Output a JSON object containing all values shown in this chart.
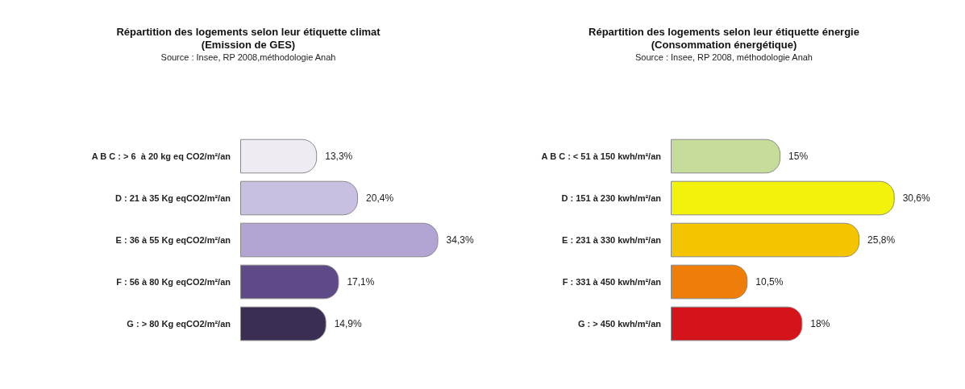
{
  "chart_data": [
    {
      "type": "bar",
      "orientation": "horizontal",
      "title": "Répartition des logements selon leur étiquette climat",
      "subtitle": "(Emission de GES)",
      "annotations": [
        "Source : Insee, RP 2008,méthodologie Anah"
      ],
      "categories": [
        "A B C : > 6  à 20 kg eq CO2/m²/an",
        "D : 21 à 35 Kg eqCO2/m²/an",
        "E : 36 à 55 Kg eqCO2/m²/an",
        "F : 56 à 80 Kg eqCO2/m²/an",
        "G : > 80 Kg eqCO2/m²/an"
      ],
      "values": [
        13.3,
        20.4,
        34.3,
        17.1,
        14.9
      ],
      "colors": [
        "#eeebf3",
        "#c9bfe0",
        "#b3a5d3",
        "#5e4a86",
        "#3a2e52"
      ],
      "value_labels": [
        "13,3%",
        "20,4%",
        "34,3%",
        "17,1%",
        "14,9%"
      ]
    },
    {
      "type": "bar",
      "orientation": "horizontal",
      "title": "Répartition des logements selon leur étiquette énergie",
      "subtitle": "(Consommation énergétique)",
      "annotations": [
        "Source : Insee, RP 2008, méthodologie Anah"
      ],
      "categories": [
        "A B C : < 51 à 150 kwh/m²/an",
        "D : 151 à 230 kwh/m²/an",
        "E : 231 à 330 kwh/m²/an",
        "F : 331 à 450 kwh/m²/an",
        "G : > 450 kwh/m²/an"
      ],
      "values": [
        15,
        30.6,
        25.8,
        10.5,
        18
      ],
      "colors": [
        "#c6dc9a",
        "#f2f20a",
        "#f5c400",
        "#ef7d0a",
        "#d4141a"
      ],
      "value_labels": [
        "15%",
        "30,6%",
        "25,8%",
        "10,5%",
        "18%"
      ]
    }
  ]
}
